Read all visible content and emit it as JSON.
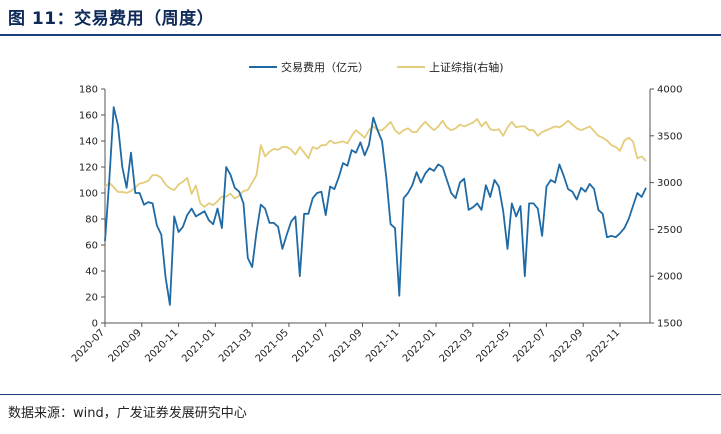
{
  "header": {
    "title": "图 11：交易费用（周度）"
  },
  "footer": {
    "source": "数据来源：wind，广发证券发展研究中心"
  },
  "chart_data": {
    "type": "line",
    "x_labels": [
      "2020-07",
      "2020-09",
      "2020-11",
      "2021-01",
      "2021-03",
      "2021-05",
      "2021-07",
      "2021-09",
      "2021-11",
      "2022-01",
      "2022-03",
      "2022-05",
      "2022-07",
      "2022-09",
      "2022-11"
    ],
    "y_left": {
      "ticks": [
        0,
        20,
        40,
        60,
        80,
        100,
        120,
        140,
        160,
        180
      ],
      "range": [
        0,
        180
      ]
    },
    "y_right": {
      "ticks": [
        1500,
        2000,
        2500,
        3000,
        3500,
        4000
      ],
      "range": [
        1500,
        4000
      ]
    },
    "series": [
      {
        "name": "交易费用（亿元）",
        "axis": "left",
        "color": "#1f6aa5",
        "values": [
          63,
          110,
          166,
          152,
          120,
          104,
          131,
          100,
          100,
          91,
          93,
          92,
          75,
          68,
          35,
          14,
          82,
          70,
          74,
          83,
          88,
          82,
          84,
          86,
          79,
          76,
          88,
          73,
          120,
          114,
          104,
          101,
          92,
          50,
          43,
          70,
          91,
          88,
          77,
          77,
          74,
          57,
          68,
          78,
          82,
          36,
          84,
          84,
          96,
          100,
          101,
          83,
          105,
          103,
          112,
          123,
          121,
          133,
          131,
          139,
          129,
          137,
          158,
          148,
          140,
          112,
          76,
          73,
          21,
          96,
          100,
          106,
          116,
          108,
          115,
          119,
          117,
          122,
          120,
          110,
          100,
          96,
          108,
          111,
          87,
          89,
          92,
          87,
          106,
          97,
          110,
          105,
          86,
          57,
          92,
          82,
          90,
          36,
          92,
          92,
          88,
          67,
          105,
          110,
          108,
          122,
          113,
          103,
          101,
          95,
          104,
          101,
          107,
          103,
          87,
          84,
          66,
          67,
          66,
          69,
          73,
          80,
          90,
          100,
          97,
          104
        ]
      },
      {
        "name": "上证综指(右轴)",
        "axis": "right",
        "color": "#e4cc7a",
        "values": [
          2950,
          3000,
          2950,
          2900,
          2900,
          2890,
          2910,
          2950,
          2990,
          3000,
          3020,
          3080,
          3080,
          3050,
          2980,
          2940,
          2920,
          2980,
          3010,
          3050,
          2880,
          2970,
          2780,
          2740,
          2780,
          2760,
          2800,
          2850,
          2850,
          2880,
          2830,
          2860,
          2910,
          2920,
          3000,
          3080,
          3400,
          3280,
          3330,
          3360,
          3350,
          3380,
          3380,
          3350,
          3300,
          3380,
          3320,
          3260,
          3380,
          3360,
          3400,
          3400,
          3450,
          3420,
          3430,
          3440,
          3420,
          3500,
          3560,
          3520,
          3480,
          3560,
          3600,
          3560,
          3560,
          3600,
          3650,
          3560,
          3520,
          3560,
          3580,
          3540,
          3540,
          3600,
          3650,
          3600,
          3560,
          3600,
          3660,
          3590,
          3560,
          3580,
          3620,
          3600,
          3620,
          3640,
          3680,
          3600,
          3650,
          3570,
          3560,
          3570,
          3500,
          3590,
          3650,
          3590,
          3600,
          3600,
          3560,
          3560,
          3500,
          3540,
          3560,
          3580,
          3600,
          3590,
          3620,
          3660,
          3620,
          3580,
          3560,
          3580,
          3600,
          3550,
          3500,
          3480,
          3450,
          3400,
          3380,
          3340,
          3450,
          3480,
          3440,
          3260,
          3280,
          3230
        ]
      }
    ]
  }
}
